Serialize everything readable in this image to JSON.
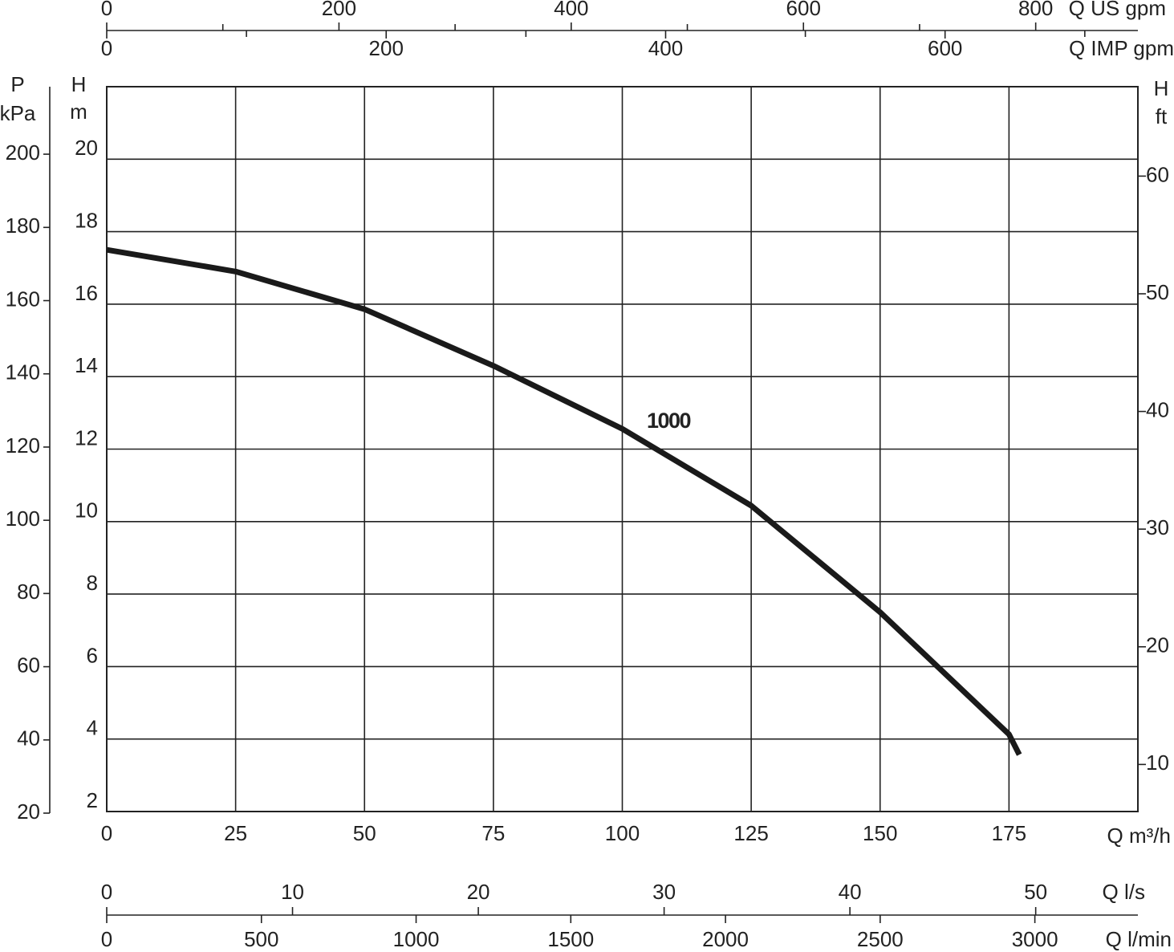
{
  "chart_data": {
    "type": "line",
    "x": [
      0,
      25,
      50,
      75,
      100,
      125,
      150,
      175,
      177
    ],
    "series": [
      {
        "name": "1000",
        "color": "#1a1a1a",
        "values": [
          17.5,
          16.9,
          15.86,
          14.3,
          12.56,
          10.44,
          7.5,
          4.13,
          3.57
        ]
      }
    ],
    "x_label": "Q m³/h",
    "y_label": [
      "H",
      "m"
    ],
    "xlim": [
      0,
      200
    ],
    "xticks": [
      0,
      25,
      50,
      75,
      100,
      125,
      150,
      175
    ],
    "ylim": [
      2,
      22
    ],
    "yticks": [
      2,
      4,
      6,
      8,
      10,
      12,
      14,
      16,
      18,
      20
    ],
    "grid": true,
    "pressure_axis": {
      "label": [
        "P",
        "kPa"
      ],
      "lim": [
        20,
        218
      ],
      "ticks": [
        20,
        40,
        60,
        80,
        100,
        120,
        140,
        160,
        180,
        200
      ]
    },
    "feet_axis": {
      "label": [
        "H",
        "ft"
      ],
      "lim": [
        6,
        67.6
      ],
      "ticks": [
        10,
        20,
        30,
        40,
        50,
        60
      ]
    },
    "us_gpm_axis": {
      "label": "Q US gpm",
      "lim": [
        0,
        888
      ],
      "ticks": [
        0,
        200,
        400,
        600,
        800
      ],
      "minor_ticks": [
        100,
        300,
        500,
        700
      ]
    },
    "imp_gpm_axis": {
      "label": "Q IMP gpm",
      "lim": [
        0,
        738
      ],
      "ticks": [
        0,
        200,
        400,
        600
      ],
      "minor_ticks": [
        100,
        300,
        500,
        700
      ]
    },
    "ls_axis": {
      "label": "Q l/s",
      "lim": [
        0,
        55.5
      ],
      "ticks": [
        0,
        10,
        20,
        30,
        40,
        50
      ]
    },
    "lmin_axis": {
      "label": "Q l/min",
      "lim": [
        0,
        3333
      ],
      "ticks": [
        0,
        500,
        1000,
        1500,
        2000,
        2500,
        3000
      ]
    }
  }
}
